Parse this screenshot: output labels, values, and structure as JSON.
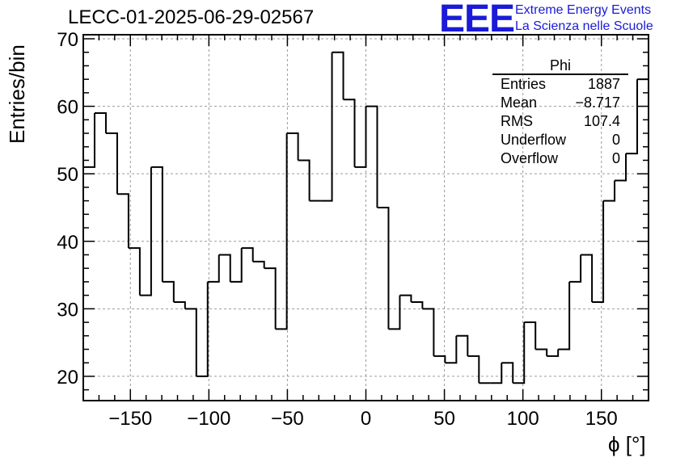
{
  "chart_data": {
    "type": "histogram",
    "title": "LECC-01-2025-06-29-02567",
    "xlabel": "ϕ [°]",
    "ylabel": "Entries/bin",
    "xlim": [
      -180,
      180
    ],
    "ylim": [
      16.4,
      70.6
    ],
    "bin_width": 7.2,
    "grid": true,
    "x_ticks": [
      -150,
      -100,
      -50,
      0,
      50,
      100,
      150
    ],
    "x_tick_labels": [
      "−150",
      "−100",
      "−50",
      "0",
      "50",
      "100",
      "150"
    ],
    "y_ticks": [
      20,
      30,
      40,
      50,
      60,
      70
    ],
    "y_tick_labels": [
      "20",
      "30",
      "40",
      "50",
      "60",
      "70"
    ],
    "values": [
      51,
      59,
      56,
      47,
      39,
      32,
      51,
      34,
      31,
      30,
      20,
      34,
      38,
      34,
      39,
      37,
      36,
      27,
      56,
      52,
      46,
      46,
      68,
      61,
      51,
      60,
      45,
      27,
      32,
      31,
      30,
      23,
      22,
      26,
      23,
      19,
      19,
      22,
      19,
      28,
      24,
      23,
      24,
      34,
      38,
      31,
      46,
      49,
      53,
      64
    ],
    "stats_box": {
      "name": "Phi",
      "rows": [
        {
          "label": "Entries",
          "value": "1887"
        },
        {
          "label": "Mean",
          "value": "−8.717"
        },
        {
          "label": "RMS",
          "value": "107.4"
        },
        {
          "label": "Underflow",
          "value": "0"
        },
        {
          "label": "Overflow",
          "value": "0"
        }
      ]
    }
  },
  "logo": {
    "mark": "EEE",
    "line1": "Extreme Energy Events",
    "line2": "La Scienza nelle Scuole"
  },
  "colors": {
    "line": "#000000",
    "grid": "#9a9a9a",
    "logo": "#1a1ad8"
  }
}
